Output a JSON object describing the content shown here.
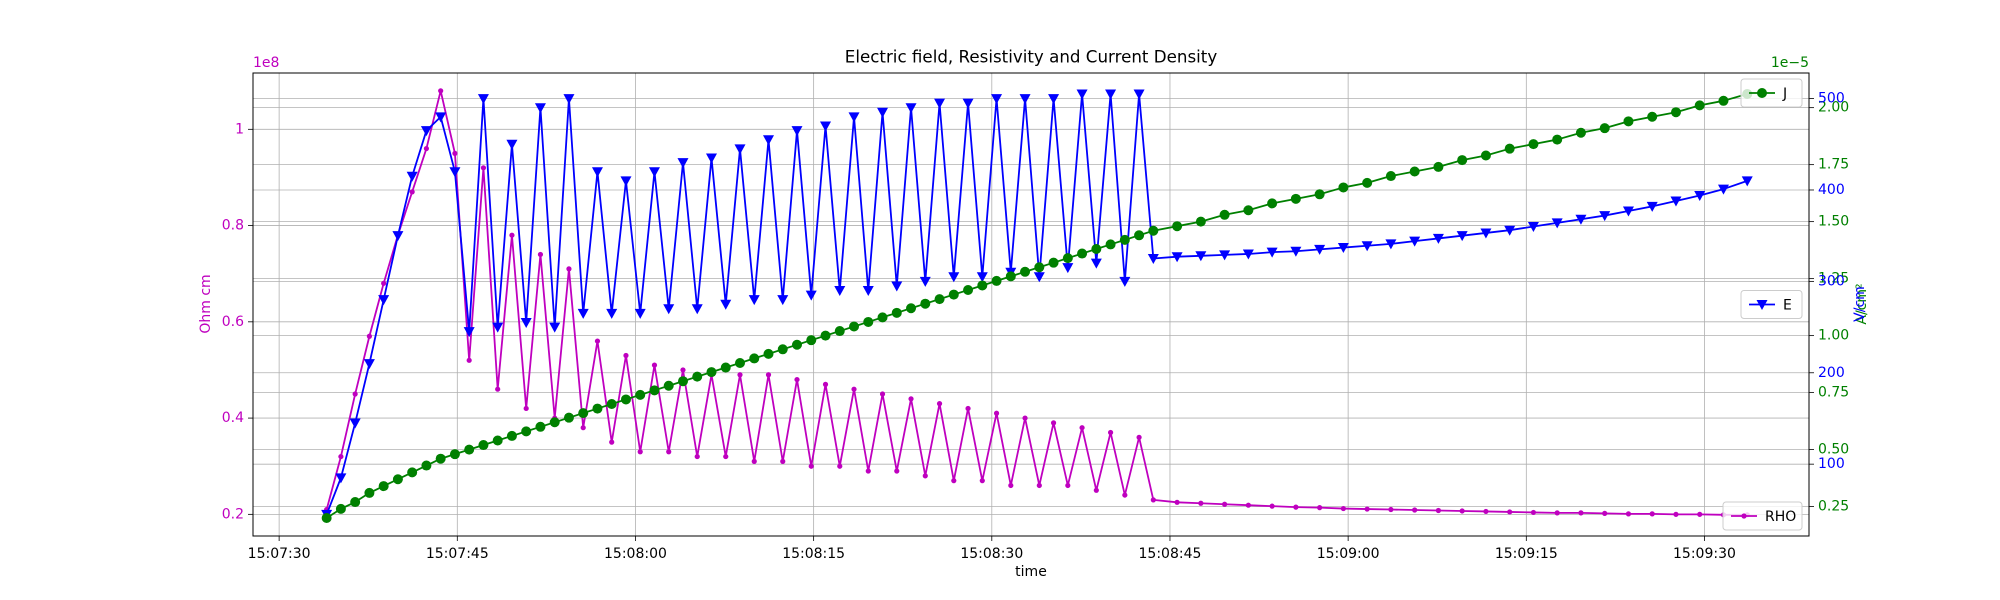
{
  "chart_data": {
    "type": "line",
    "title": "Electric field, Resistivity and Current Density",
    "xlabel": "time",
    "ylabel": "Ohm cm",
    "y2label": "A/cm²",
    "y3label": "V/cm",
    "yoffset": "1e8",
    "y2offset": "1e−5",
    "grid": true,
    "x": [
      "15:07:34.0",
      "15:07:35.2",
      "15:07:36.4",
      "15:07:37.6",
      "15:07:38.8",
      "15:07:40.0",
      "15:07:41.2",
      "15:07:42.4",
      "15:07:43.6",
      "15:07:44.8",
      "15:07:46.0",
      "15:07:47.2",
      "15:07:48.4",
      "15:07:49.6",
      "15:07:50.8",
      "15:07:52.0",
      "15:07:53.2",
      "15:07:54.4",
      "15:07:55.6",
      "15:07:56.8",
      "15:07:58.0",
      "15:07:59.2",
      "15:08:00.4",
      "15:08:01.6",
      "15:08:02.8",
      "15:08:04.0",
      "15:08:05.2",
      "15:08:06.4",
      "15:08:07.6",
      "15:08:08.8",
      "15:08:10.0",
      "15:08:11.2",
      "15:08:12.4",
      "15:08:13.6",
      "15:08:14.8",
      "15:08:16.0",
      "15:08:17.2",
      "15:08:18.4",
      "15:08:19.6",
      "15:08:20.8",
      "15:08:22.0",
      "15:08:23.2",
      "15:08:24.4",
      "15:08:25.6",
      "15:08:26.8",
      "15:08:28.0",
      "15:08:29.2",
      "15:08:30.4",
      "15:08:31.6",
      "15:08:32.8",
      "15:08:34.0",
      "15:08:35.2",
      "15:08:36.4",
      "15:08:37.6",
      "15:08:38.8",
      "15:08:40.0",
      "15:08:41.2",
      "15:08:42.4",
      "15:08:43.6",
      "15:08:45.6",
      "15:08:47.6",
      "15:08:49.6",
      "15:08:51.6",
      "15:08:53.6",
      "15:08:55.6",
      "15:08:57.6",
      "15:08:59.6",
      "15:09:01.6",
      "15:09:03.6",
      "15:09:05.6",
      "15:09:07.6",
      "15:09:09.6",
      "15:09:11.6",
      "15:09:13.6",
      "15:09:15.6",
      "15:09:17.6",
      "15:09:19.6",
      "15:09:21.6",
      "15:09:23.6",
      "15:09:25.6",
      "15:09:27.6",
      "15:09:29.6",
      "15:09:31.6",
      "15:09:33.6"
    ],
    "xlim": [
      "15:07:27.8",
      "15:09:38.8"
    ],
    "xticks": [
      "15:07:30",
      "15:07:45",
      "15:08:00",
      "15:08:15",
      "15:08:30",
      "15:08:45",
      "15:09:00",
      "15:09:15",
      "15:09:30"
    ],
    "ylim": [
      0.155,
      1.117
    ],
    "yticks": [
      0.2,
      0.4,
      0.6,
      0.8,
      1.0
    ],
    "y2lim": [
      0.121,
      2.152
    ],
    "y2ticks": [
      0.25,
      {
        "value": 0.5,
        "label": "0.50"
      },
      0.75,
      {
        "value": 1.0,
        "label": "1.00"
      },
      1.25,
      {
        "value": 1.5,
        "label": "1.50"
      },
      1.75,
      {
        "value": 2.0,
        "label": "2.00"
      }
    ],
    "y3lim": [
      21.4,
      528
    ],
    "y3ticks": [
      100,
      200,
      300,
      400,
      500
    ],
    "series": [
      {
        "name": "RHO",
        "color": "#bf00bf",
        "axis": "y",
        "marker": "point",
        "legend_loc": "lower right",
        "values": [
          0.21,
          0.32,
          0.45,
          0.57,
          0.68,
          0.78,
          0.87,
          0.96,
          1.08,
          0.95,
          0.52,
          0.92,
          0.46,
          0.78,
          0.42,
          0.74,
          0.4,
          0.71,
          0.38,
          0.56,
          0.35,
          0.53,
          0.33,
          0.51,
          0.33,
          0.5,
          0.32,
          0.49,
          0.32,
          0.49,
          0.31,
          0.49,
          0.31,
          0.48,
          0.3,
          0.47,
          0.3,
          0.46,
          0.29,
          0.45,
          0.29,
          0.44,
          0.28,
          0.43,
          0.27,
          0.42,
          0.27,
          0.41,
          0.26,
          0.4,
          0.26,
          0.39,
          0.26,
          0.38,
          0.25,
          0.37,
          0.24,
          0.36,
          0.23,
          0.225,
          0.223,
          0.221,
          0.219,
          0.217,
          0.215,
          0.214,
          0.212,
          0.211,
          0.21,
          0.209,
          0.208,
          0.207,
          0.206,
          0.205,
          0.204,
          0.203,
          0.203,
          0.202,
          0.201,
          0.201,
          0.2,
          0.2,
          0.199,
          0.199
        ]
      },
      {
        "name": "E",
        "color": "#0000ff",
        "axis": "y3",
        "marker": "triangle_down",
        "legend_loc": "center right",
        "values": [
          45,
          85,
          145,
          210,
          280,
          350,
          415,
          465,
          480,
          420,
          245,
          500,
          250,
          450,
          255,
          490,
          250,
          500,
          265,
          420,
          265,
          410,
          265,
          420,
          270,
          430,
          270,
          435,
          275,
          445,
          280,
          455,
          280,
          465,
          285,
          470,
          290,
          480,
          290,
          485,
          295,
          490,
          300,
          495,
          305,
          495,
          305,
          500,
          310,
          500,
          305,
          500,
          315,
          505,
          320,
          505,
          300,
          505,
          325,
          327,
          328,
          329,
          330,
          332,
          333,
          335,
          337,
          339,
          341,
          344,
          347,
          350,
          353,
          356,
          360,
          364,
          368,
          372,
          377,
          382,
          388,
          394,
          401,
          410
        ]
      },
      {
        "name": "J",
        "color": "#008000",
        "axis": "y2",
        "marker": "circle",
        "legend_loc": "upper right",
        "values": [
          0.2,
          0.24,
          0.27,
          0.31,
          0.34,
          0.37,
          0.4,
          0.43,
          0.46,
          0.48,
          0.5,
          0.52,
          0.54,
          0.56,
          0.58,
          0.6,
          0.62,
          0.64,
          0.66,
          0.68,
          0.7,
          0.72,
          0.74,
          0.76,
          0.78,
          0.8,
          0.82,
          0.84,
          0.86,
          0.88,
          0.9,
          0.92,
          0.94,
          0.96,
          0.98,
          1.0,
          1.02,
          1.04,
          1.06,
          1.08,
          1.1,
          1.12,
          1.14,
          1.16,
          1.18,
          1.2,
          1.22,
          1.24,
          1.26,
          1.28,
          1.3,
          1.32,
          1.34,
          1.36,
          1.38,
          1.4,
          1.42,
          1.44,
          1.46,
          1.48,
          1.5,
          1.53,
          1.55,
          1.58,
          1.6,
          1.62,
          1.65,
          1.67,
          1.7,
          1.72,
          1.74,
          1.77,
          1.79,
          1.82,
          1.84,
          1.86,
          1.89,
          1.91,
          1.94,
          1.96,
          1.98,
          2.01,
          2.03,
          2.06
        ]
      }
    ]
  }
}
